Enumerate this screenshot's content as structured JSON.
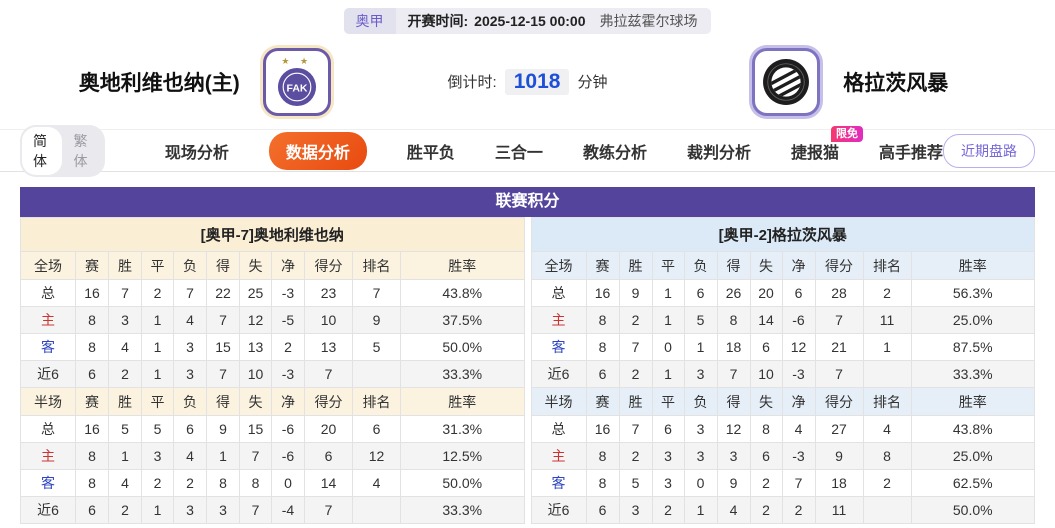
{
  "match_bar": {
    "league": "奥甲",
    "kickoff_label": "开赛时间:",
    "kickoff_time": "2025-12-15 00:00",
    "venue": "弗拉兹霍尔球场"
  },
  "teams": {
    "home_name": "奥地利维也纳(主)",
    "home_logo_text": "FAK",
    "home_logo_stars": "★ ★",
    "away_name": "格拉茨风暴"
  },
  "countdown": {
    "label": "倒计时:",
    "value": "1018",
    "unit": "分钟"
  },
  "nav": {
    "lang": {
      "simplified": "简体",
      "traditional": "繁体"
    },
    "tabs": [
      {
        "label": "现场分析",
        "active": false
      },
      {
        "label": "数据分析",
        "active": true
      },
      {
        "label": "胜平负",
        "active": false
      },
      {
        "label": "三合一",
        "active": false
      },
      {
        "label": "教练分析",
        "active": false
      },
      {
        "label": "裁判分析",
        "active": false
      },
      {
        "label": "捷报猫",
        "active": false,
        "badge": "限免"
      },
      {
        "label": "高手推荐",
        "active": false
      }
    ],
    "recent_trend_button": "近期盘路"
  },
  "standings": {
    "title": "联赛积分",
    "full_section_label": "全场",
    "half_section_label": "半场",
    "columns": [
      "赛",
      "胜",
      "平",
      "负",
      "得",
      "失",
      "净",
      "得分",
      "排名",
      "胜率"
    ],
    "left": {
      "team_header": "[奥甲-7]奥地利维也纳",
      "full_rows": [
        [
          "总",
          "16",
          "7",
          "2",
          "7",
          "22",
          "25",
          "-3",
          "23",
          "7",
          "43.8%"
        ],
        [
          "主",
          "8",
          "3",
          "1",
          "4",
          "7",
          "12",
          "-5",
          "10",
          "9",
          "37.5%"
        ],
        [
          "客",
          "8",
          "4",
          "1",
          "3",
          "15",
          "13",
          "2",
          "13",
          "5",
          "50.0%"
        ],
        [
          "近6",
          "6",
          "2",
          "1",
          "3",
          "7",
          "10",
          "-3",
          "7",
          "",
          "33.3%"
        ]
      ],
      "half_rows": [
        [
          "总",
          "16",
          "5",
          "5",
          "6",
          "9",
          "15",
          "-6",
          "20",
          "6",
          "31.3%"
        ],
        [
          "主",
          "8",
          "1",
          "3",
          "4",
          "1",
          "7",
          "-6",
          "6",
          "12",
          "12.5%"
        ],
        [
          "客",
          "8",
          "4",
          "2",
          "2",
          "8",
          "8",
          "0",
          "14",
          "4",
          "50.0%"
        ],
        [
          "近6",
          "6",
          "2",
          "1",
          "3",
          "3",
          "7",
          "-4",
          "7",
          "",
          "33.3%"
        ]
      ]
    },
    "right": {
      "team_header": "[奥甲-2]格拉茨风暴",
      "full_rows": [
        [
          "总",
          "16",
          "9",
          "1",
          "6",
          "26",
          "20",
          "6",
          "28",
          "2",
          "56.3%"
        ],
        [
          "主",
          "8",
          "2",
          "1",
          "5",
          "8",
          "14",
          "-6",
          "7",
          "11",
          "25.0%"
        ],
        [
          "客",
          "8",
          "7",
          "0",
          "1",
          "18",
          "6",
          "12",
          "21",
          "1",
          "87.5%"
        ],
        [
          "近6",
          "6",
          "2",
          "1",
          "3",
          "7",
          "10",
          "-3",
          "7",
          "",
          "33.3%"
        ]
      ],
      "half_rows": [
        [
          "总",
          "16",
          "7",
          "6",
          "3",
          "12",
          "8",
          "4",
          "27",
          "4",
          "43.8%"
        ],
        [
          "主",
          "8",
          "2",
          "3",
          "3",
          "3",
          "6",
          "-3",
          "9",
          "8",
          "25.0%"
        ],
        [
          "客",
          "8",
          "5",
          "3",
          "0",
          "9",
          "2",
          "7",
          "18",
          "2",
          "62.5%"
        ],
        [
          "近6",
          "6",
          "3",
          "2",
          "1",
          "4",
          "2",
          "2",
          "11",
          "",
          "50.0%"
        ]
      ]
    }
  },
  "colors": {
    "accent_purple": "#55449c",
    "active_tab_orange": "#e84a10",
    "badge_pink": "#ef2f9e",
    "home_cream": "#faeed4",
    "away_blue": "#dceaf8",
    "countdown_blue": "#1d4fd7",
    "home_row_red": "#cc3333",
    "away_row_blue": "#2f46c0"
  }
}
